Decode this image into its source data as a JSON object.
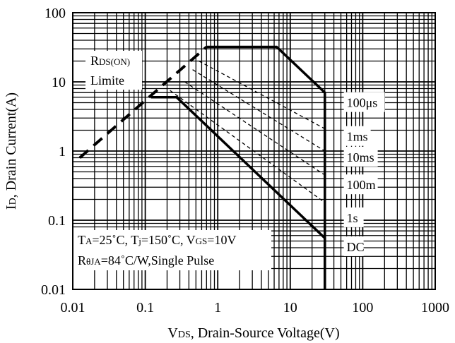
{
  "chart_data": {
    "type": "line",
    "x_scale": "log",
    "y_scale": "log",
    "xlim": [
      0.01,
      1000
    ],
    "ylim": [
      0.01,
      100
    ],
    "grid": true,
    "x_ticks": [
      "0.01",
      "0.1",
      "1",
      "10",
      "100",
      "1000"
    ],
    "y_ticks": [
      "100",
      "10",
      "1",
      "0.1",
      "0.01"
    ],
    "xlabel": {
      "main": "V",
      "sub": "DS",
      "rest": ", Drain-Source Voltage(V)"
    },
    "ylabel": {
      "main": "I",
      "sub": "D",
      "rest": ", Drain Current(A)"
    },
    "rds_label": {
      "line1_main": "R",
      "line1_sub": "DS(ON)",
      "line2": "Limite"
    },
    "conditions": {
      "line1": [
        {
          "t": "T",
          "sub": false
        },
        {
          "t": "A",
          "sub": true
        },
        {
          "t": "=25˚C, T",
          "sub": false
        },
        {
          "t": "j",
          "sub": true
        },
        {
          "t": "=150˚C, V",
          "sub": false
        },
        {
          "t": "GS",
          "sub": true
        },
        {
          "t": "=10V",
          "sub": false
        }
      ],
      "line2": [
        {
          "t": "R",
          "sub": false
        },
        {
          "t": "θJA",
          "sub": true
        },
        {
          "t": "=84˚C/W,Single Pulse",
          "sub": false
        }
      ]
    },
    "series": [
      {
        "name": "RDS(ON) Limite",
        "style": "dashed-thick",
        "points": [
          [
            0.0125,
            0.8
          ],
          [
            0.7,
            32
          ]
        ]
      },
      {
        "name": "100μs",
        "style": "solid-thick",
        "points": [
          [
            0.7,
            32
          ],
          [
            6.5,
            32
          ],
          [
            30,
            7
          ],
          [
            30,
            0.01
          ]
        ]
      },
      {
        "name": "1ms",
        "style": "dashed-thin",
        "points": [
          [
            0.55,
            20
          ],
          [
            30,
            2.1
          ]
        ]
      },
      {
        "name": "10ms",
        "style": "dashed-thin",
        "points": [
          [
            0.45,
            15
          ],
          [
            30,
            1.0
          ]
        ]
      },
      {
        "name": "100m",
        "style": "dashed-thin",
        "points": [
          [
            0.35,
            10
          ],
          [
            30,
            0.45
          ]
        ]
      },
      {
        "name": "1s",
        "style": "dashed-thin",
        "points": [
          [
            0.22,
            7.5
          ],
          [
            30,
            0.18
          ]
        ]
      },
      {
        "name": "DC",
        "style": "solid-thick",
        "points": [
          [
            0.12,
            6
          ],
          [
            0.27,
            6
          ],
          [
            30,
            0.055
          ],
          [
            30,
            0.01
          ]
        ]
      }
    ],
    "curve_labels": [
      {
        "text": "100μs",
        "x": 60,
        "y": 5.1
      },
      {
        "text": "1ms",
        "x": 60,
        "y": 1.65
      },
      {
        "text": "10ms",
        "x": 60,
        "y": 0.83
      },
      {
        "text": "100m",
        "x": 60,
        "y": 0.33
      },
      {
        "text": "1s",
        "x": 60,
        "y": 0.11
      },
      {
        "text": "DC",
        "x": 60,
        "y": 0.042
      }
    ]
  }
}
